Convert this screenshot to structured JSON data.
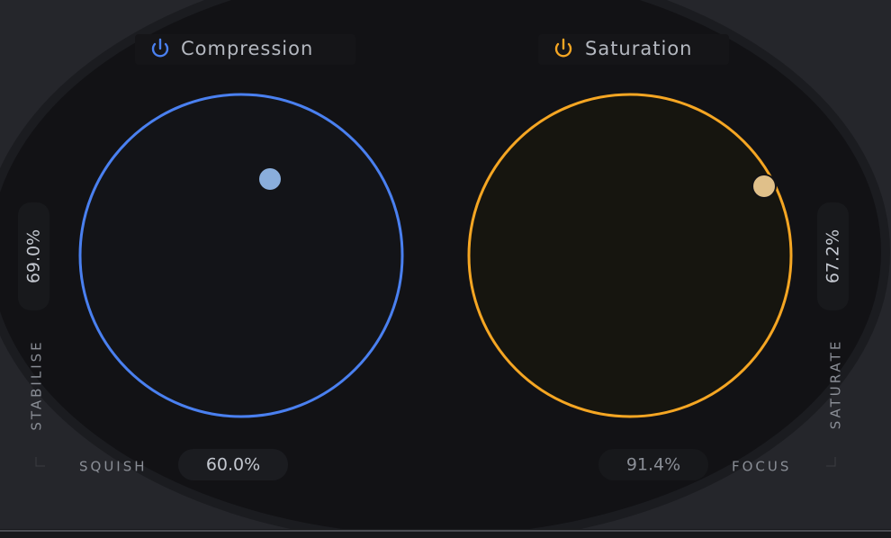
{
  "compression": {
    "title": "Compression",
    "squish_label": "SQUISH",
    "squish_value": "60.0%",
    "stabilise_label": "STABILISE",
    "stabilise_value": "69.0%"
  },
  "saturation": {
    "title": "Saturation",
    "focus_label": "FOCUS",
    "focus_value": "91.4%",
    "saturate_label": "SATURATE",
    "saturate_value": "67.2%"
  }
}
